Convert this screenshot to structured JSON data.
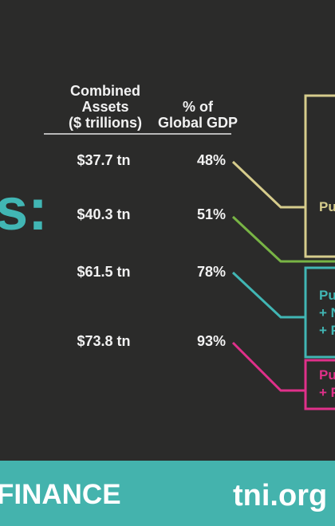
{
  "headline_fragment": "s:",
  "table": {
    "headers": [
      "Combined\nAssets\n($ trillions)",
      "% of\nGlobal GDP"
    ],
    "rows": [
      [
        "$37.7 tn",
        "48%"
      ],
      [
        "$40.3 tn",
        "51%"
      ],
      [
        "$61.5 tn",
        "78%"
      ],
      [
        "$73.8 tn",
        "93%"
      ]
    ]
  },
  "boxes": [
    {
      "lines": [
        "Pu"
      ]
    },
    {
      "lines": [
        "Pu",
        "+ N",
        "+ F"
      ]
    },
    {
      "lines": [
        "Pu",
        "+ F"
      ]
    }
  ],
  "footer": {
    "left": "FINANCE",
    "right": "tni.org"
  }
}
